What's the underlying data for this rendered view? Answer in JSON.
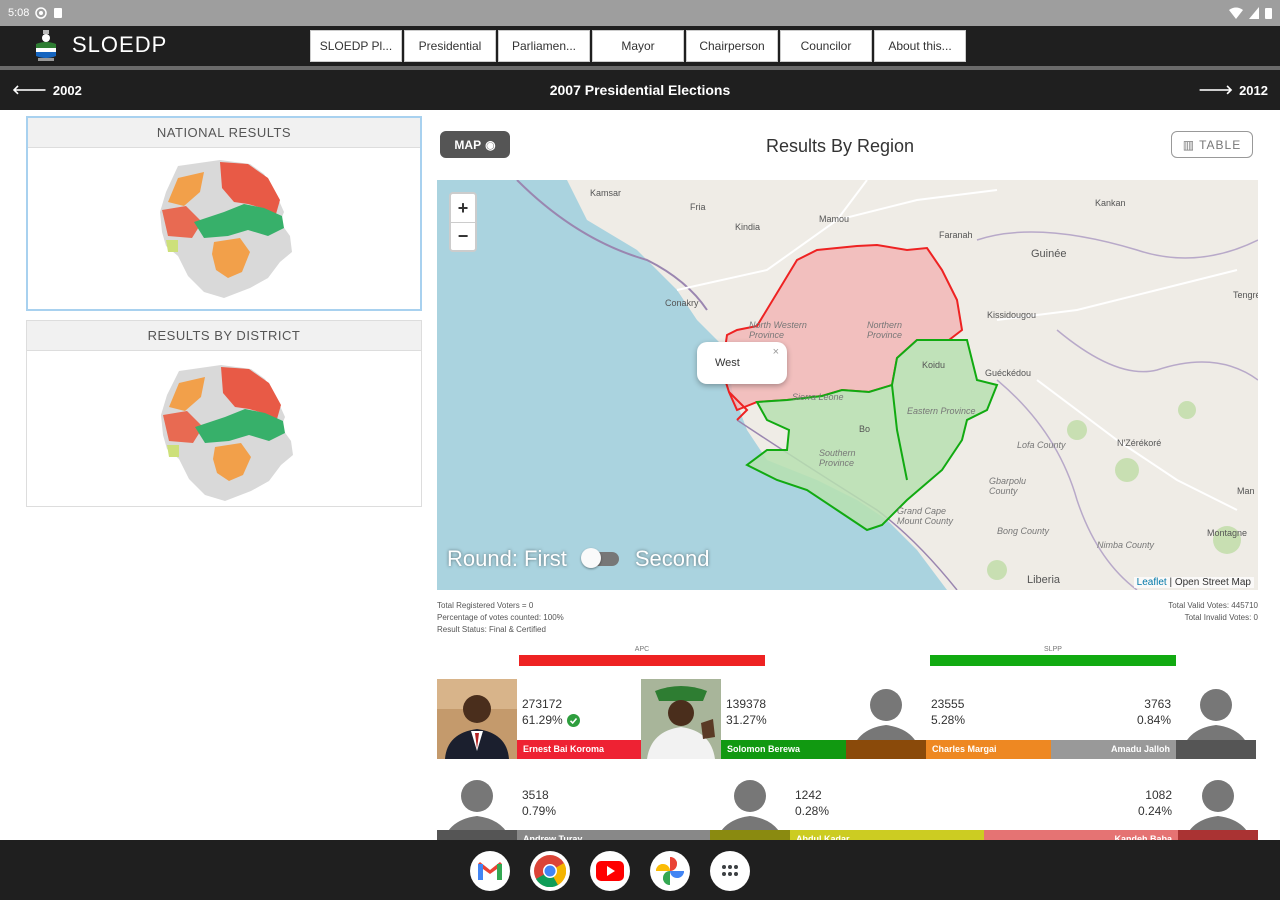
{
  "status_bar": {
    "time": "5:08"
  },
  "header": {
    "app_title": "SLOEDP"
  },
  "nav": {
    "items": [
      "SLOEDP Pl...",
      "Presidential",
      "Parliamen...",
      "Mayor",
      "Chairperson",
      "Councilor",
      "About this..."
    ]
  },
  "subbar": {
    "prev_label": "2002",
    "title": "2007 Presidential Elections",
    "next_label": "2012"
  },
  "left_panels": [
    {
      "title": "NATIONAL RESULTS"
    },
    {
      "title": "RESULTS BY DISTRICT"
    }
  ],
  "results": {
    "map_button": "MAP",
    "title": "Results By Region",
    "table_button": "TABLE",
    "popup_label": "West",
    "round_first": "Round: First",
    "round_second": "Second",
    "attribution_leaflet": "Leaflet",
    "attribution_osm": "| Open Street Map",
    "map_labels": {
      "kamsar": "Kamsar",
      "fria": "Fria",
      "mamou": "Mamou",
      "faranah": "Faranah",
      "kankan": "Kankan",
      "kindia": "Kindia",
      "conakry": "Conakry",
      "guinee": "Guinée",
      "kissidougou": "Kissidougou",
      "gueckedou": "Guéckédou",
      "nw_province": "North Western Province",
      "n_province": "Northern Province",
      "e_province": "Eastern Province",
      "s_province": "Southern Province",
      "kono": "Koidu",
      "bo": "Bo",
      "sierra_leone": "Sierra Leone",
      "lofa": "Lofa County",
      "gbarpolu": "Gbarpolu County",
      "grand_cape": "Grand Cape Mount County",
      "bong": "Bong County",
      "nimba": "Nimba County",
      "liberia": "Liberia",
      "nzerekore": "N'Zérékoré",
      "man": "Man",
      "tengrela": "Tengréla",
      "montagne": "Montagne"
    }
  },
  "stats": {
    "registered": "Total Registered Voters = 0",
    "percent_counted": "Percentage of votes counted: 100%",
    "status": "Result Status: Final & Certified",
    "valid_votes": "Total Valid Votes: 445710",
    "invalid_votes": "Total Invalid Votes: 0"
  },
  "parties": [
    {
      "name": "APC",
      "color": "#ee2222"
    },
    {
      "name": "SLPP",
      "color": "#11aa11"
    }
  ],
  "candidates_row1": [
    {
      "votes": "273172",
      "percent": "61.29%",
      "name": "Ernest Bai Koroma",
      "color": "#ee2233",
      "winner": true
    },
    {
      "votes": "139378",
      "percent": "31.27%",
      "name": "Solomon Berewa",
      "color": "#119911"
    },
    {
      "votes": "23555",
      "percent": "5.28%",
      "name": "Charles Margai",
      "color": "#ee8822",
      "extra_color": "#8a4a0a"
    },
    {
      "votes": "3763",
      "percent": "0.84%",
      "name": "Amadu Jalloh",
      "color": "#999999"
    }
  ],
  "candidates_row2": [
    {
      "votes": "3518",
      "percent": "0.79%",
      "name": "Andrew Turay",
      "color": "#888888"
    },
    {
      "votes": "1242",
      "percent": "0.28%",
      "name": "Abdul Kadar",
      "color": "#cccc22"
    },
    {
      "votes": "1082",
      "percent": "0.24%",
      "name": "Kandeh Baba",
      "color": "#e57373"
    }
  ],
  "colors": {
    "dark_bar": "#1f1f1f",
    "apc_red": "#ee2222",
    "slpp_green": "#11aa11",
    "pmdc_orange": "#f5a742"
  },
  "dock": {
    "apps": [
      "gmail-icon",
      "chrome-icon",
      "youtube-icon",
      "photos-icon",
      "app-drawer-icon"
    ]
  }
}
